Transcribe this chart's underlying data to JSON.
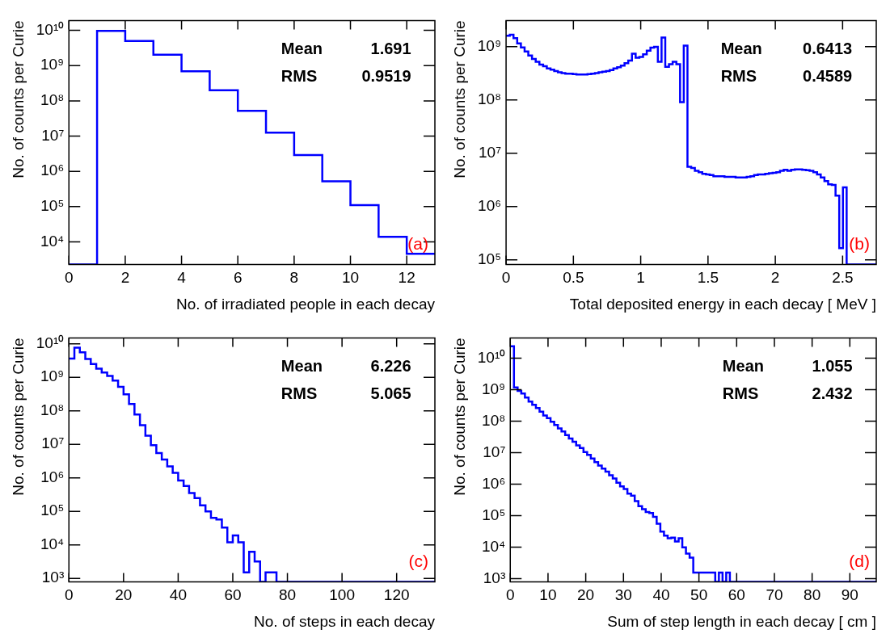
{
  "chart_data": [
    {
      "type": "histogram",
      "xlabel": "No. of irradiated people in each decay",
      "ylabel": "No. of counts per Curie",
      "color": "#0000ff",
      "log": "y",
      "grid": false,
      "legend": false,
      "bins": [
        0,
        1,
        2,
        3,
        4,
        5,
        6,
        7,
        8,
        9,
        10,
        11,
        12,
        13
      ],
      "values": [
        null,
        9600000000,
        5000000000,
        2040000000,
        690000000,
        200000000,
        52000000,
        12600000,
        2900000,
        520000,
        110000,
        14000,
        4600
      ],
      "xlim": [
        0,
        13
      ],
      "xticks": [
        0,
        2,
        4,
        6,
        8,
        10,
        12
      ],
      "ylim": [
        2300,
        19000000000
      ],
      "yticks": [
        {
          "value": 10000,
          "label": "10⁴"
        },
        {
          "value": 100000,
          "label": "10⁵"
        },
        {
          "value": 1000000,
          "label": "10⁶"
        },
        {
          "value": 10000000,
          "label": "10⁷"
        },
        {
          "value": 100000000,
          "label": "10⁸"
        },
        {
          "value": 1000000000,
          "label": "10⁹"
        },
        {
          "value": 10000000000,
          "label": "10¹⁰"
        }
      ],
      "annotations": [
        "Mean",
        "1.691",
        "RMS",
        "0.9519",
        "(a)"
      ]
    },
    {
      "type": "histogram",
      "xlabel": "Total deposited energy in each decay [ MeV ]",
      "ylabel": "No. of counts per Curie",
      "color": "#0000ff",
      "log": "y",
      "grid": false,
      "legend": false,
      "bins": [
        0,
        0.0275,
        0.055,
        0.0825,
        0.11,
        0.1375,
        0.165,
        0.1925,
        0.22,
        0.2475,
        0.275,
        0.3025,
        0.33,
        0.3575,
        0.385,
        0.4125,
        0.44,
        0.4675,
        0.495,
        0.5225,
        0.55,
        0.5775,
        0.605,
        0.6325,
        0.66,
        0.6875,
        0.715,
        0.7425,
        0.77,
        0.7975,
        0.825,
        0.8525,
        0.88,
        0.9075,
        0.935,
        0.9625,
        0.99,
        1.0175,
        1.045,
        1.0725,
        1.1,
        1.1275,
        1.155,
        1.1825,
        1.21,
        1.2375,
        1.265,
        1.2925,
        1.32,
        1.3475,
        1.375,
        1.4025,
        1.43,
        1.4575,
        1.485,
        1.5125,
        1.54,
        1.5675,
        1.595,
        1.6225,
        1.65,
        1.6775,
        1.705,
        1.7325,
        1.76,
        1.7875,
        1.815,
        1.8425,
        1.87,
        1.8975,
        1.925,
        1.9525,
        1.98,
        2.0075,
        2.035,
        2.0625,
        2.09,
        2.1175,
        2.145,
        2.1725,
        2.2,
        2.2275,
        2.255,
        2.2825,
        2.31,
        2.3375,
        2.365,
        2.3925,
        2.42,
        2.4475,
        2.475,
        2.5025,
        2.53,
        2.5575,
        2.585,
        2.6125,
        2.64,
        2.6675,
        2.695,
        2.7225,
        2.75
      ],
      "values": [
        1600000000,
        1670000000,
        1450000000,
        1150000000,
        970000000,
        810000000,
        680000000,
        590000000,
        520000000,
        460000000,
        430000000,
        390000000,
        370000000,
        350000000,
        330000000,
        320000000,
        310000000,
        310000000,
        305000000,
        300000000,
        300000000,
        300000000,
        305000000,
        310000000,
        320000000,
        330000000,
        340000000,
        350000000,
        365000000,
        390000000,
        410000000,
        440000000,
        490000000,
        550000000,
        740000000,
        620000000,
        640000000,
        720000000,
        840000000,
        960000000,
        990000000,
        520000000,
        1490000000,
        420000000,
        470000000,
        520000000,
        470000000,
        91000000,
        1050000000,
        5600000,
        5300000,
        4700000,
        4400000,
        4100000,
        4000000,
        3900000,
        3700000,
        3700000,
        3700000,
        3600000,
        3600000,
        3600000,
        3500000,
        3500000,
        3500000,
        3600000,
        3700000,
        3900000,
        4000000,
        4000000,
        4100000,
        4200000,
        4300000,
        4400000,
        4700000,
        4900000,
        4700000,
        4900000,
        5000000,
        5000000,
        4900000,
        4800000,
        4700000,
        4400000,
        4000000,
        3500000,
        3000000,
        2600000,
        2550000,
        1600000,
        166000,
        2300000,
        null,
        null,
        null,
        null,
        null,
        null,
        null,
        null
      ],
      "xlim": [
        0,
        2.75
      ],
      "xticks": [
        0,
        0.5,
        1,
        1.5,
        2,
        2.5
      ],
      "ylim": [
        82000,
        3100000000
      ],
      "yticks": [
        {
          "value": 100000,
          "label": "10⁵"
        },
        {
          "value": 1000000,
          "label": "10⁶"
        },
        {
          "value": 10000000,
          "label": "10⁷"
        },
        {
          "value": 100000000,
          "label": "10⁸"
        },
        {
          "value": 1000000000,
          "label": "10⁹"
        }
      ],
      "annotations": [
        "Mean",
        "0.6413",
        "RMS",
        "0.4589",
        "(b)"
      ]
    },
    {
      "type": "histogram",
      "xlabel": "No. of steps in each decay",
      "ylabel": "No. of counts per Curie",
      "color": "#0000ff",
      "log": "y",
      "grid": false,
      "legend": false,
      "bins": [
        0,
        2,
        4,
        6,
        8,
        10,
        12,
        14,
        16,
        18,
        20,
        22,
        24,
        26,
        28,
        30,
        32,
        34,
        36,
        38,
        40,
        42,
        44,
        46,
        48,
        50,
        52,
        54,
        56,
        58,
        60,
        62,
        64,
        66,
        68,
        70,
        72,
        74,
        76,
        78,
        80,
        82,
        84,
        86,
        88,
        90,
        92,
        94,
        96,
        98,
        100,
        102,
        104,
        106,
        108,
        110,
        112,
        114,
        116,
        118,
        120,
        122,
        124,
        126,
        128,
        130,
        132,
        134
      ],
      "values": [
        3600000000,
        7700000000,
        5600000000,
        3500000000,
        2500000000,
        1800000000,
        1400000000,
        1100000000,
        800000000,
        520000000,
        310000000,
        160000000,
        78000000,
        37000000,
        18000000,
        9400000,
        5500000,
        3500000,
        2200000,
        1400000,
        830000,
        570000,
        350000,
        250000,
        150000,
        100000,
        64000,
        57000,
        33000,
        12000,
        19000,
        12000,
        1500,
        6200,
        3200,
        null,
        1500,
        1500,
        null,
        null,
        null,
        null,
        null,
        null,
        null,
        null,
        null,
        null,
        null,
        null,
        null,
        null,
        null,
        null,
        null,
        null,
        null,
        null,
        null,
        null,
        null,
        null,
        null,
        null,
        null,
        null,
        null
      ],
      "xlim": [
        0,
        134
      ],
      "xticks": [
        0,
        20,
        40,
        60,
        80,
        100,
        120
      ],
      "ylim": [
        790,
        15000000000
      ],
      "yticks": [
        {
          "value": 1000,
          "label": "10³"
        },
        {
          "value": 10000,
          "label": "10⁴"
        },
        {
          "value": 100000,
          "label": "10⁵"
        },
        {
          "value": 1000000,
          "label": "10⁶"
        },
        {
          "value": 10000000,
          "label": "10⁷"
        },
        {
          "value": 100000000,
          "label": "10⁸"
        },
        {
          "value": 1000000000,
          "label": "10⁹"
        },
        {
          "value": 10000000000,
          "label": "10¹⁰"
        }
      ],
      "annotations": [
        "Mean",
        "6.226",
        "RMS",
        "5.065",
        "(c)"
      ]
    },
    {
      "type": "histogram",
      "xlabel": "Sum of step length in each decay [ cm ]",
      "ylabel": "No. of counts per Curie",
      "color": "#0000ff",
      "log": "y",
      "grid": false,
      "legend": false,
      "bins": [
        0,
        0.97,
        1.94,
        2.91,
        3.88,
        4.85,
        5.82,
        6.79,
        7.76,
        8.73,
        9.7,
        10.67,
        11.64,
        12.61,
        13.58,
        14.55,
        15.52,
        16.49,
        17.46,
        18.43,
        19.4,
        20.37,
        21.34,
        22.31,
        23.28,
        24.25,
        25.22,
        26.19,
        27.16,
        28.13,
        29.1,
        30.07,
        31.04,
        32.01,
        32.98,
        33.95,
        34.92,
        35.89,
        36.86,
        37.83,
        38.8,
        39.77,
        40.74,
        41.71,
        42.68,
        43.65,
        44.62,
        45.59,
        46.56,
        47.53,
        48.5,
        49.47,
        50.44,
        51.41,
        52.38,
        53.35,
        54.32,
        55.29,
        56.26,
        57.23,
        58.2,
        59.17,
        60.14,
        61.11,
        62.08,
        63.05,
        64.02,
        64.99,
        65.96,
        66.93,
        67.9,
        68.87,
        69.84,
        70.81,
        71.78,
        72.75,
        73.72,
        74.69,
        75.66,
        76.63,
        77.6,
        78.57,
        79.54,
        80.51,
        81.48,
        82.45,
        83.42,
        84.39,
        85.36,
        86.33,
        87.3,
        88.27,
        89.24,
        90.21,
        91.18,
        92.15,
        93.12,
        94.09,
        95.06,
        96.03,
        97
      ],
      "values": [
        24000000000,
        1170000000,
        910000000,
        750000000,
        560000000,
        420000000,
        330000000,
        260000000,
        200000000,
        150000000,
        125000000,
        95000000,
        75000000,
        59000000,
        47000000,
        36000000,
        28000000,
        22000000,
        17000000,
        14000000,
        10500000,
        8500000,
        6500000,
        5000000,
        3900000,
        3100000,
        2500000,
        1900000,
        1500000,
        1100000,
        850000,
        700000,
        500000,
        430000,
        290000,
        200000,
        160000,
        130000,
        120000,
        91000,
        55000,
        31000,
        23000,
        19000,
        20000,
        15000,
        19000,
        9800,
        6200,
        4600,
        1550,
        1550,
        1550,
        1550,
        1550,
        1550,
        null,
        1550,
        null,
        1550,
        null,
        null,
        null,
        null,
        null,
        null,
        null,
        null,
        null,
        null,
        null,
        null,
        null,
        null,
        null,
        null,
        null,
        null,
        null,
        null,
        null,
        null,
        null,
        null,
        null,
        null,
        null,
        null,
        null,
        null,
        null,
        null,
        null,
        null,
        null,
        null,
        null,
        null,
        null,
        null
      ],
      "xlim": [
        0,
        97
      ],
      "xticks": [
        0,
        10,
        20,
        30,
        40,
        50,
        60,
        70,
        80,
        90
      ],
      "ylim": [
        790,
        44000000000
      ],
      "yticks": [
        {
          "value": 1000,
          "label": "10³"
        },
        {
          "value": 10000,
          "label": "10⁴"
        },
        {
          "value": 100000,
          "label": "10⁵"
        },
        {
          "value": 1000000,
          "label": "10⁶"
        },
        {
          "value": 10000000,
          "label": "10⁷"
        },
        {
          "value": 100000000,
          "label": "10⁸"
        },
        {
          "value": 1000000000,
          "label": "10⁹"
        },
        {
          "value": 10000000000,
          "label": "10¹⁰"
        }
      ],
      "annotations": [
        "Mean",
        "1.055",
        "RMS",
        "2.432",
        "(d)"
      ]
    }
  ]
}
